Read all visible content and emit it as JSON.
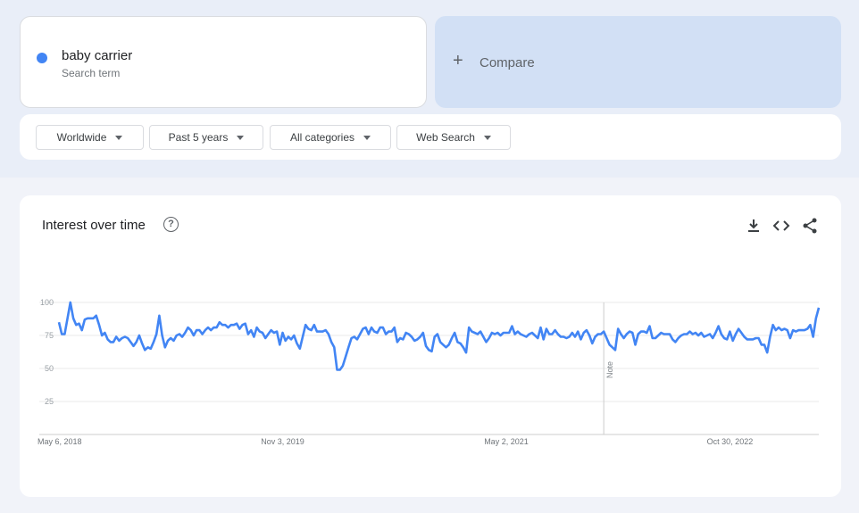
{
  "search_term": {
    "name": "baby carrier",
    "type": "Search term",
    "color": "#4285f4"
  },
  "compare": {
    "icon": "plus-icon",
    "label": "Compare"
  },
  "filters": [
    {
      "label": "Worldwide"
    },
    {
      "label": "Past 5 years"
    },
    {
      "label": "All categories"
    },
    {
      "label": "Web Search"
    }
  ],
  "chart_card": {
    "title": "Interest over time",
    "help_icon": "help-circle-icon",
    "actions": [
      "download-icon",
      "embed-code-icon",
      "share-icon"
    ]
  },
  "chart_data": {
    "type": "line",
    "title": "Interest over time",
    "xlabel": "",
    "ylabel": "",
    "ylim": [
      0,
      100
    ],
    "yticks": [
      25,
      50,
      75,
      100
    ],
    "xtick_labels": [
      "May 6, 2018",
      "Nov 3, 2019",
      "May 2, 2021",
      "Oct 30, 2022"
    ],
    "grid": true,
    "line_color": "#4285f4",
    "note": {
      "label": "Note",
      "index": 190
    },
    "series": [
      {
        "values": [
          85,
          76,
          76,
          88,
          100,
          88,
          83,
          84,
          79,
          87,
          88,
          88,
          88,
          90,
          83,
          75,
          77,
          72,
          70,
          70,
          74,
          71,
          73,
          74,
          73,
          70,
          67,
          70,
          75,
          69,
          64,
          66,
          65,
          70,
          76,
          90,
          75,
          66,
          71,
          73,
          71,
          75,
          76,
          74,
          77,
          81,
          79,
          75,
          79,
          79,
          76,
          79,
          81,
          79,
          81,
          81,
          85,
          83,
          83,
          81,
          83,
          83,
          84,
          80,
          83,
          84,
          76,
          79,
          74,
          81,
          78,
          77,
          73,
          76,
          79,
          77,
          78,
          68,
          77,
          71,
          74,
          72,
          75,
          69,
          65,
          74,
          83,
          80,
          79,
          83,
          78,
          78,
          78,
          79,
          76,
          70,
          66,
          49,
          49,
          52,
          59,
          66,
          73,
          74,
          72,
          76,
          80,
          81,
          76,
          81,
          78,
          77,
          81,
          81,
          76,
          78,
          78,
          81,
          70,
          73,
          72,
          77,
          76,
          74,
          71,
          72,
          74,
          77,
          67,
          64,
          63,
          74,
          76,
          70,
          68,
          66,
          68,
          73,
          77,
          70,
          69,
          66,
          62,
          81,
          78,
          77,
          76,
          78,
          74,
          70,
          73,
          77,
          76,
          77,
          75,
          77,
          77,
          77,
          82,
          76,
          78,
          76,
          75,
          74,
          76,
          77,
          75,
          73,
          81,
          72,
          80,
          76,
          76,
          79,
          76,
          74,
          74,
          73,
          74,
          77,
          74,
          78,
          72,
          77,
          79,
          75,
          69,
          74,
          76,
          76,
          78,
          73,
          68,
          66,
          64,
          80,
          76,
          73,
          76,
          78,
          77,
          68,
          76,
          78,
          78,
          77,
          82,
          73,
          73,
          75,
          77,
          76,
          76,
          76,
          72,
          70,
          73,
          75,
          76,
          76,
          78,
          76,
          77,
          75,
          77,
          74,
          75,
          76,
          73,
          77,
          82,
          76,
          73,
          72,
          78,
          71,
          76,
          80,
          77,
          74,
          72,
          72,
          72,
          73,
          73,
          68,
          68,
          62,
          74,
          83,
          79,
          81,
          79,
          80,
          79,
          73,
          79,
          78,
          79,
          79,
          79,
          80,
          83,
          74,
          88,
          96
        ]
      }
    ]
  }
}
